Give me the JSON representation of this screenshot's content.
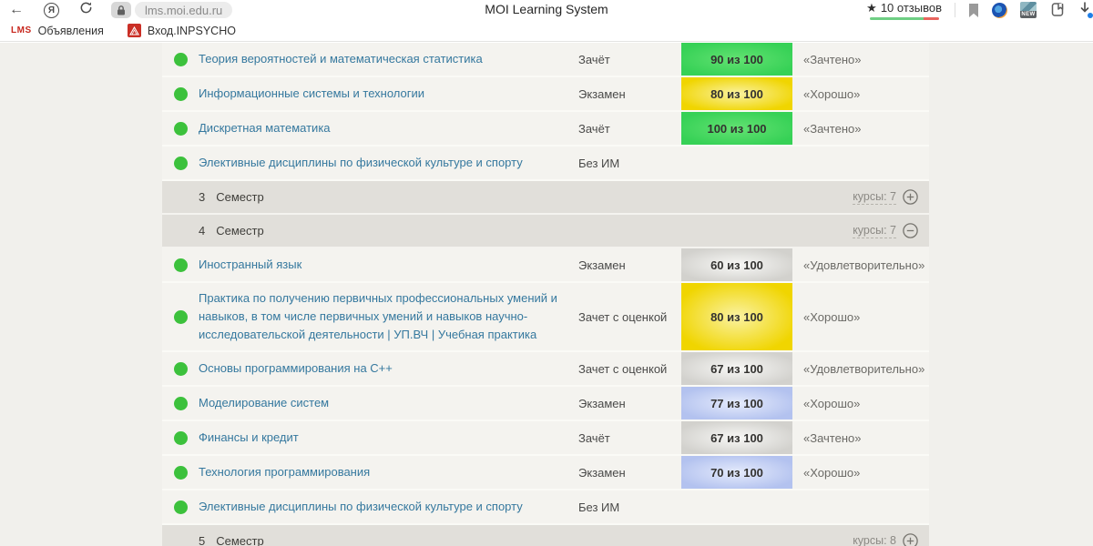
{
  "browser": {
    "url": "lms.moi.edu.ru",
    "page_title": "MOI Learning System",
    "reviews_label": "10 отзывов",
    "star": "★",
    "back_arrow": "←",
    "yandex_letter": "Я",
    "bookmarks": [
      {
        "logo_text": "LMS",
        "label": "Объявления"
      },
      {
        "logo_text": "",
        "label": "Вход.INPSYCHO"
      }
    ]
  },
  "colors": {
    "dot_green": "#3cc13c",
    "link": "#35789e",
    "reviews_bar_green": "#6fcf84",
    "reviews_bar_red": "#e8645e",
    "badge_colors": {
      "green": {
        "center": "#63e272",
        "edge": "#36d156"
      },
      "yellow": {
        "center": "#faf2a2",
        "edge": "#f0d500"
      },
      "gray": {
        "center": "#f8f8f6",
        "edge": "#d2d1cd"
      },
      "blue": {
        "center": "#e5ebfc",
        "edge": "#b3c2ef"
      }
    }
  },
  "table": {
    "items": [
      {
        "kind": "course",
        "name": "Теория вероятностей и математическая статистика",
        "exam_type": "Зачёт",
        "score": "90 из 100",
        "badge": "green",
        "grade": "«Зачтено»"
      },
      {
        "kind": "course",
        "name": "Информационные системы и технологии",
        "exam_type": "Экзамен",
        "score": "80 из 100",
        "badge": "yellow",
        "grade": "«Хорошо»"
      },
      {
        "kind": "course",
        "name": "Дискретная математика",
        "exam_type": "Зачёт",
        "score": "100 из 100",
        "badge": "green",
        "grade": "«Зачтено»"
      },
      {
        "kind": "course",
        "name": "Элективные дисциплины по физической культуре и спорту",
        "exam_type": "Без ИМ",
        "score": "",
        "badge": "",
        "grade": ""
      },
      {
        "kind": "section",
        "number": "3",
        "label": "Семестр",
        "courses_label": "курсы: 7",
        "toggle": "plus"
      },
      {
        "kind": "section",
        "number": "4",
        "label": "Семестр",
        "courses_label": "курсы: 7",
        "toggle": "minus"
      },
      {
        "kind": "course",
        "name": "Иностранный язык",
        "exam_type": "Экзамен",
        "score": "60 из 100",
        "badge": "gray",
        "grade": "«Удовлетворительно»"
      },
      {
        "kind": "course",
        "name": "Практика по получению первичных профессиональных умений и навыков, в том числе первичных умений и навыков научно-исследовательской деятельности | УП.ВЧ | Учебная практика",
        "exam_type": "Зачет с оценкой",
        "score": "80 из 100",
        "badge": "yellow",
        "grade": "«Хорошо»",
        "tall": true
      },
      {
        "kind": "course",
        "name": "Основы программирования на C++",
        "exam_type": "Зачет с оценкой",
        "score": "67 из 100",
        "badge": "gray",
        "grade": "«Удовлетворительно»"
      },
      {
        "kind": "course",
        "name": "Моделирование систем",
        "exam_type": "Экзамен",
        "score": "77 из 100",
        "badge": "blue",
        "grade": "«Хорошо»"
      },
      {
        "kind": "course",
        "name": "Финансы и кредит",
        "exam_type": "Зачёт",
        "score": "67 из 100",
        "badge": "gray",
        "grade": "«Зачтено»"
      },
      {
        "kind": "course",
        "name": "Технология программирования",
        "exam_type": "Экзамен",
        "score": "70 из 100",
        "badge": "blue",
        "grade": "«Хорошо»"
      },
      {
        "kind": "course",
        "name": "Элективные дисциплины по физической культуре и спорту",
        "exam_type": "Без ИМ",
        "score": "",
        "badge": "",
        "grade": ""
      },
      {
        "kind": "section",
        "number": "5",
        "label": "Семестр",
        "courses_label": "курсы: 8",
        "toggle": "plus"
      }
    ]
  }
}
